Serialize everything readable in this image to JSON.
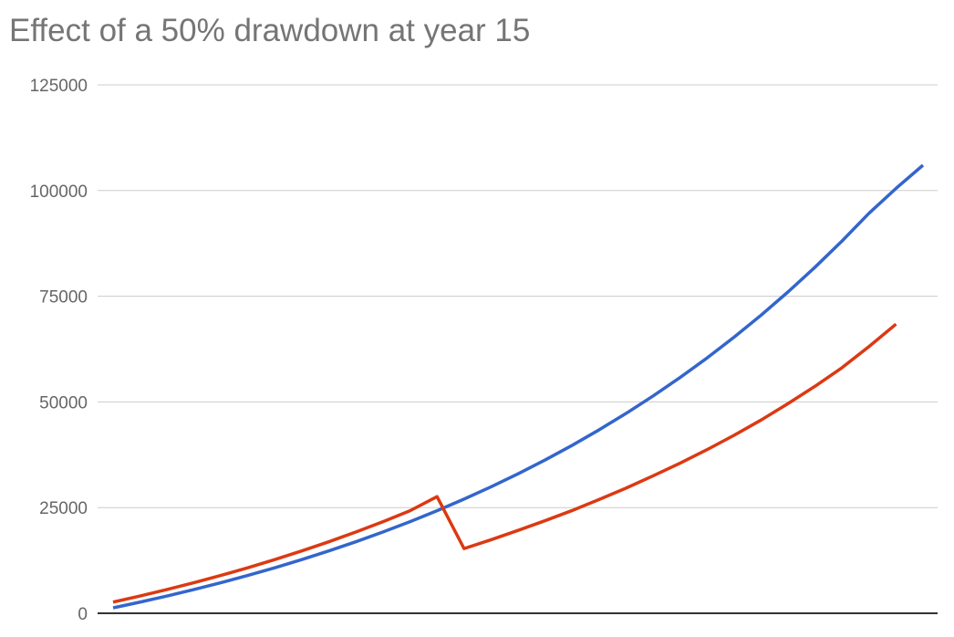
{
  "chart_data": {
    "type": "line",
    "title": "Effect of a 50% drawdown at year 15",
    "xlabel": "",
    "ylabel": "",
    "ylim": [
      0,
      125000
    ],
    "yticks": [
      "0",
      "25000",
      "50000",
      "75000",
      "100000",
      "125000"
    ],
    "xlim": [
      0,
      30
    ],
    "grid": true,
    "legend": "none",
    "series": [
      {
        "color": "#3366cc",
        "x": [
          0,
          1,
          2,
          3,
          4,
          5,
          6,
          7,
          8,
          9,
          10,
          11,
          12,
          13,
          14,
          15,
          16,
          17,
          18,
          19,
          20,
          21,
          22,
          23,
          24,
          25,
          26,
          27,
          28,
          29,
          30
        ],
        "values": [
          1285,
          2647,
          4091,
          5622,
          7243,
          8963,
          10786,
          12718,
          14767,
          16937,
          19239,
          21678,
          24263,
          27005,
          29911,
          32991,
          36255,
          39714,
          43382,
          47270,
          51393,
          55760,
          60390,
          65298,
          70503,
          76018,
          81862,
          88060,
          94629,
          100500,
          106000
        ]
      },
      {
        "color": "#dc3912",
        "x": [
          0,
          1,
          2,
          3,
          4,
          5,
          6,
          7,
          8,
          9,
          10,
          11,
          12,
          13,
          14,
          15,
          16,
          17,
          18,
          19,
          20,
          21,
          22,
          23,
          24,
          25,
          26,
          27,
          28,
          29
        ],
        "values": [
          2647,
          4091,
          5622,
          7243,
          8963,
          10786,
          12718,
          14767,
          16937,
          19239,
          21678,
          24263,
          27600,
          15300,
          17400,
          19600,
          21900,
          24300,
          26900,
          29600,
          32500,
          35500,
          38700,
          42100,
          45700,
          49600,
          53700,
          58100,
          63100,
          68400
        ]
      }
    ]
  }
}
